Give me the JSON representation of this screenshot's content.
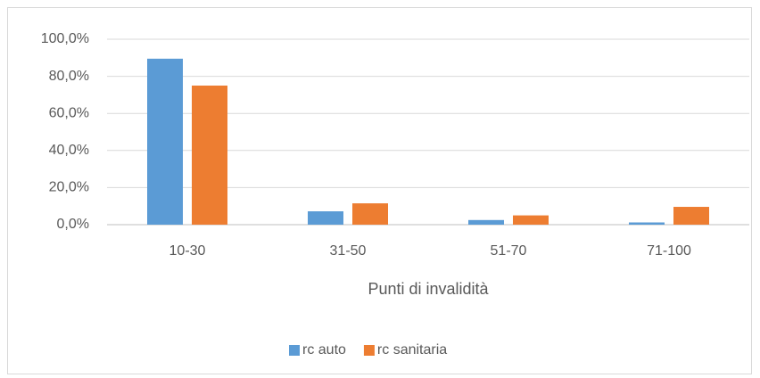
{
  "chart_data": {
    "type": "bar",
    "x_label": "Punti di invalidità",
    "categories": [
      "10-30",
      "31-50",
      "51-70",
      "71-100"
    ],
    "series": [
      {
        "name": "rc auto",
        "color": "#5b9bd5",
        "values": [
          89.5,
          7.2,
          2.5,
          1.2
        ]
      },
      {
        "name": "rc sanitaria",
        "color": "#ed7d31",
        "values": [
          75.0,
          11.5,
          5.0,
          9.6
        ]
      }
    ],
    "ylim": [
      0,
      100
    ],
    "yticks": [
      {
        "value": 0,
        "label": "0,0%"
      },
      {
        "value": 20,
        "label": "20,0%"
      },
      {
        "value": 40,
        "label": "40,0%"
      },
      {
        "value": 60,
        "label": "60,0%"
      },
      {
        "value": 80,
        "label": "80,0%"
      },
      {
        "value": 100,
        "label": "100,0%"
      }
    ],
    "grid": true,
    "legend": "bottom"
  }
}
